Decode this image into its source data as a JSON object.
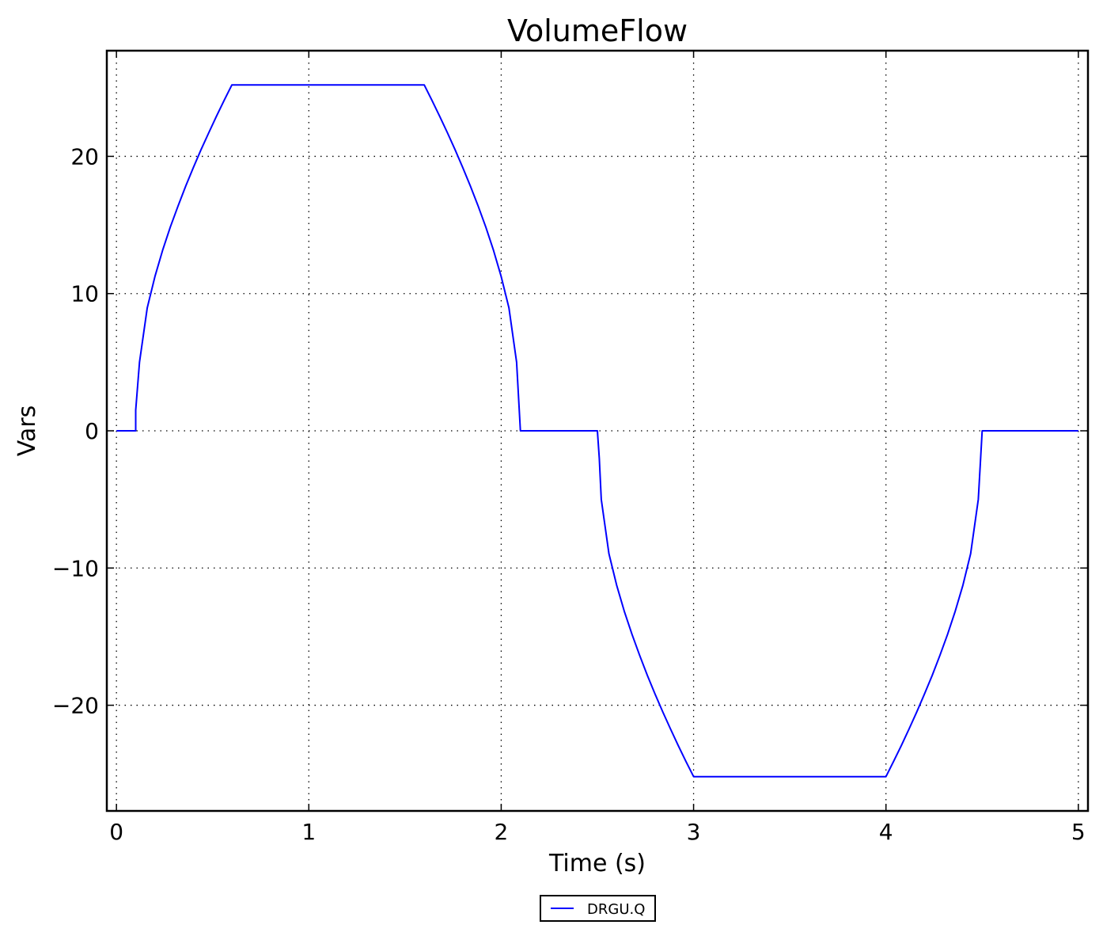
{
  "chart_data": {
    "type": "line",
    "title": "VolumeFlow",
    "xlabel": "Time (s)",
    "ylabel": "Vars",
    "xlim": [
      -0.05,
      5.05
    ],
    "ylim": [
      -27.7,
      27.7
    ],
    "xticks": [
      0,
      1,
      2,
      3,
      4,
      5
    ],
    "xtick_labels": [
      "0",
      "1",
      "2",
      "3",
      "4",
      "5"
    ],
    "yticks": [
      -20,
      -10,
      0,
      10,
      20
    ],
    "ytick_labels": [
      "−20",
      "−10",
      "0",
      "10",
      "20"
    ],
    "grid": true,
    "legend_position": "below-center",
    "series": [
      {
        "name": "DRGU.Q",
        "color": "#0000ff",
        "x": [
          0,
          0.1,
          0.1,
          0.12,
          0.16,
          0.2,
          0.24,
          0.28,
          0.32,
          0.36,
          0.4,
          0.44,
          0.48,
          0.52,
          0.56,
          0.6,
          1.6,
          1.64,
          1.68,
          1.72,
          1.76,
          1.8,
          1.84,
          1.88,
          1.92,
          1.96,
          2.0,
          2.04,
          2.08,
          2.1,
          2.5,
          2.5,
          2.51,
          2.52,
          2.56,
          2.6,
          2.64,
          2.68,
          2.72,
          2.76,
          2.8,
          2.84,
          2.88,
          2.92,
          2.96,
          3.0,
          4.0,
          4.04,
          4.08,
          4.12,
          4.16,
          4.2,
          4.24,
          4.28,
          4.32,
          4.36,
          4.4,
          4.44,
          4.48,
          4.5,
          5.0
        ],
        "y": [
          0,
          0,
          1.5,
          5,
          8.96,
          11.24,
          13.15,
          14.84,
          16.38,
          17.83,
          19.19,
          20.49,
          21.73,
          22.93,
          24.08,
          25.2,
          25.2,
          24.08,
          22.93,
          21.73,
          20.49,
          19.19,
          17.83,
          16.38,
          14.84,
          13.15,
          11.24,
          8.96,
          5,
          0,
          0,
          0,
          -2,
          -5,
          -8.96,
          -11.24,
          -13.15,
          -14.84,
          -16.38,
          -17.83,
          -19.19,
          -20.49,
          -21.73,
          -22.93,
          -24.08,
          -25.2,
          -25.2,
          -24.08,
          -22.93,
          -21.73,
          -20.49,
          -19.19,
          -17.83,
          -16.38,
          -14.84,
          -13.15,
          -11.24,
          -8.96,
          -5,
          0,
          0
        ]
      }
    ]
  }
}
